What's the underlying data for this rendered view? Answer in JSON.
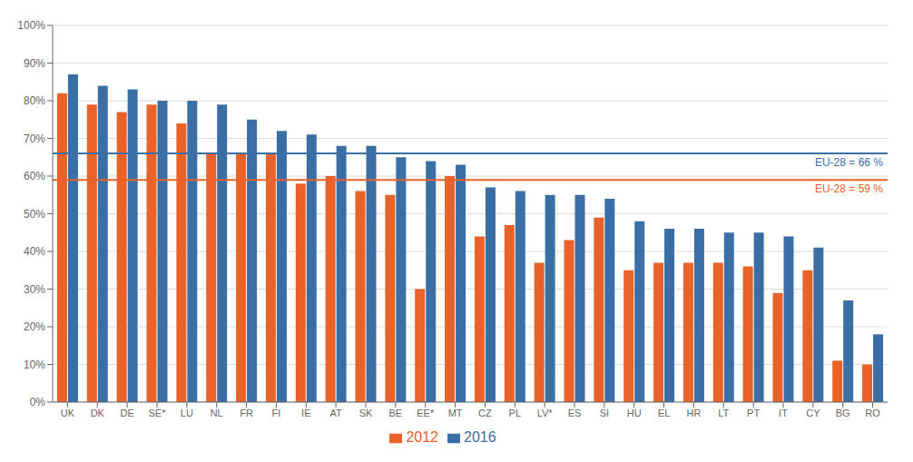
{
  "chart_data": {
    "type": "bar",
    "categories": [
      "UK",
      "DK",
      "DE",
      "SE*",
      "LU",
      "NL",
      "FR",
      "FI",
      "IE",
      "AT",
      "SK",
      "BE",
      "EE*",
      "MT",
      "CZ",
      "PL",
      "LV*",
      "ES",
      "SI",
      "HU",
      "EL",
      "HR",
      "LT",
      "PT",
      "IT",
      "CY",
      "BG",
      "RO"
    ],
    "series": [
      {
        "name": "2012",
        "color": "#E8622A",
        "values": [
          82,
          79,
          77,
          79,
          74,
          66,
          66,
          66,
          58,
          60,
          56,
          55,
          30,
          60,
          44,
          47,
          37,
          43,
          49,
          35,
          37,
          37,
          37,
          36,
          29,
          35,
          11,
          10
        ]
      },
      {
        "name": "2016",
        "color": "#3A6EA5",
        "values": [
          87,
          84,
          83,
          80,
          80,
          79,
          75,
          72,
          71,
          68,
          68,
          65,
          64,
          63,
          57,
          56,
          55,
          55,
          54,
          48,
          46,
          46,
          45,
          45,
          44,
          41,
          27,
          18
        ]
      }
    ],
    "annotations": [
      {
        "type": "hline",
        "y": 66,
        "label": "EU-28 = 66 %",
        "color": "#3A6EA5"
      },
      {
        "type": "hline",
        "y": 59,
        "label": "EU-28 = 59 %",
        "color": "#E8622A"
      }
    ],
    "ylim": [
      0,
      100
    ],
    "yticks": [
      {
        "value": 0,
        "label": "0%"
      },
      {
        "value": 10,
        "label": "10%"
      },
      {
        "value": 20,
        "label": "20%"
      },
      {
        "value": 30,
        "label": "30%"
      },
      {
        "value": 40,
        "label": "40%"
      },
      {
        "value": 50,
        "label": "50%"
      },
      {
        "value": 60,
        "label": "60%"
      },
      {
        "value": 70,
        "label": "70%"
      },
      {
        "value": 80,
        "label": "80%"
      },
      {
        "value": 90,
        "label": "90%"
      },
      {
        "value": 100,
        "label": "100%"
      }
    ],
    "grid": true,
    "legend": "bottom"
  }
}
